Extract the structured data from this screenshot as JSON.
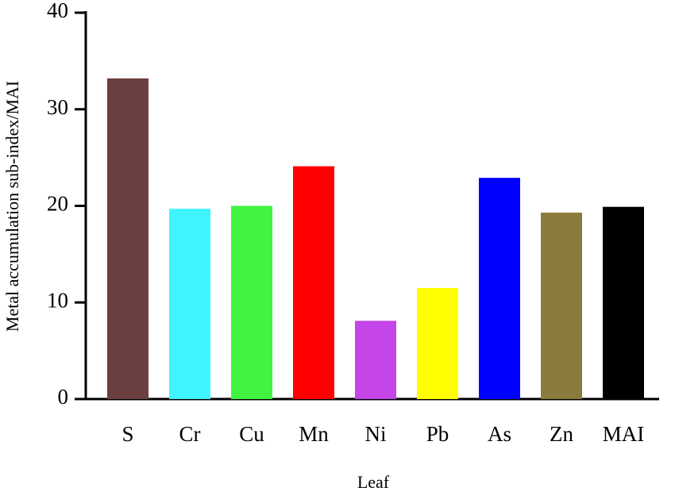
{
  "chart_data": {
    "type": "bar",
    "x_label": "Leaf",
    "y_label": "Metal accumulation sub-index/MAI",
    "categories": [
      "S",
      "Cr",
      "Cu",
      "Mn",
      "Ni",
      "Pb",
      "As",
      "Zn",
      "MAI"
    ],
    "values": [
      33.2,
      19.7,
      20.0,
      24.1,
      8.1,
      11.5,
      22.9,
      19.3,
      19.9
    ],
    "colors": [
      "#6b3f3f",
      "#40f4ff",
      "#40f440",
      "#ff0000",
      "#c445e8",
      "#ffff00",
      "#0000ff",
      "#8b7b3c",
      "#000000"
    ],
    "ylim": [
      0,
      40
    ],
    "yticks": [
      0,
      10,
      20,
      30,
      40
    ],
    "grid": false
  }
}
